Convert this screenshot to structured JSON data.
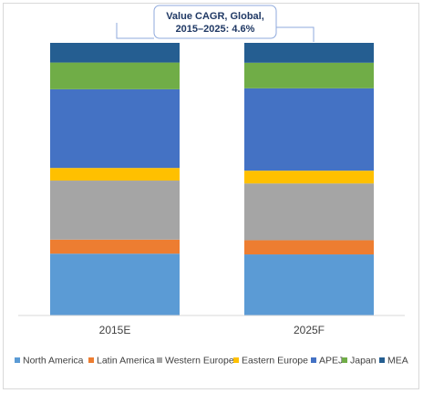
{
  "chart_data": {
    "type": "bar",
    "stacked": true,
    "normalized": true,
    "categories": [
      "2015E",
      "2025F"
    ],
    "series": [
      {
        "name": "North America",
        "color": "#5b9bd5",
        "values": [
          22.0,
          21.5
        ]
      },
      {
        "name": "Latin America",
        "color": "#ed7d31",
        "values": [
          5.0,
          5.0
        ]
      },
      {
        "name": "Western Europe",
        "color": "#a5a5a5",
        "values": [
          21.0,
          20.0
        ]
      },
      {
        "name": "Eastern Europe",
        "color": "#ffc000",
        "values": [
          4.5,
          4.5
        ]
      },
      {
        "name": "APEJ",
        "color": "#4472c4",
        "values": [
          28.0,
          29.0
        ]
      },
      {
        "name": "Japan",
        "color": "#70ad47",
        "values": [
          9.5,
          9.0
        ]
      },
      {
        "name": "MEA",
        "color": "#255e91",
        "values": [
          7.0,
          7.0
        ]
      }
    ],
    "ylim": [
      0,
      100
    ],
    "grid": false,
    "legend_position": "bottom",
    "annotation": {
      "line1": "Value CAGR, Global,",
      "line2": "2015–2025: 4.6%"
    }
  }
}
